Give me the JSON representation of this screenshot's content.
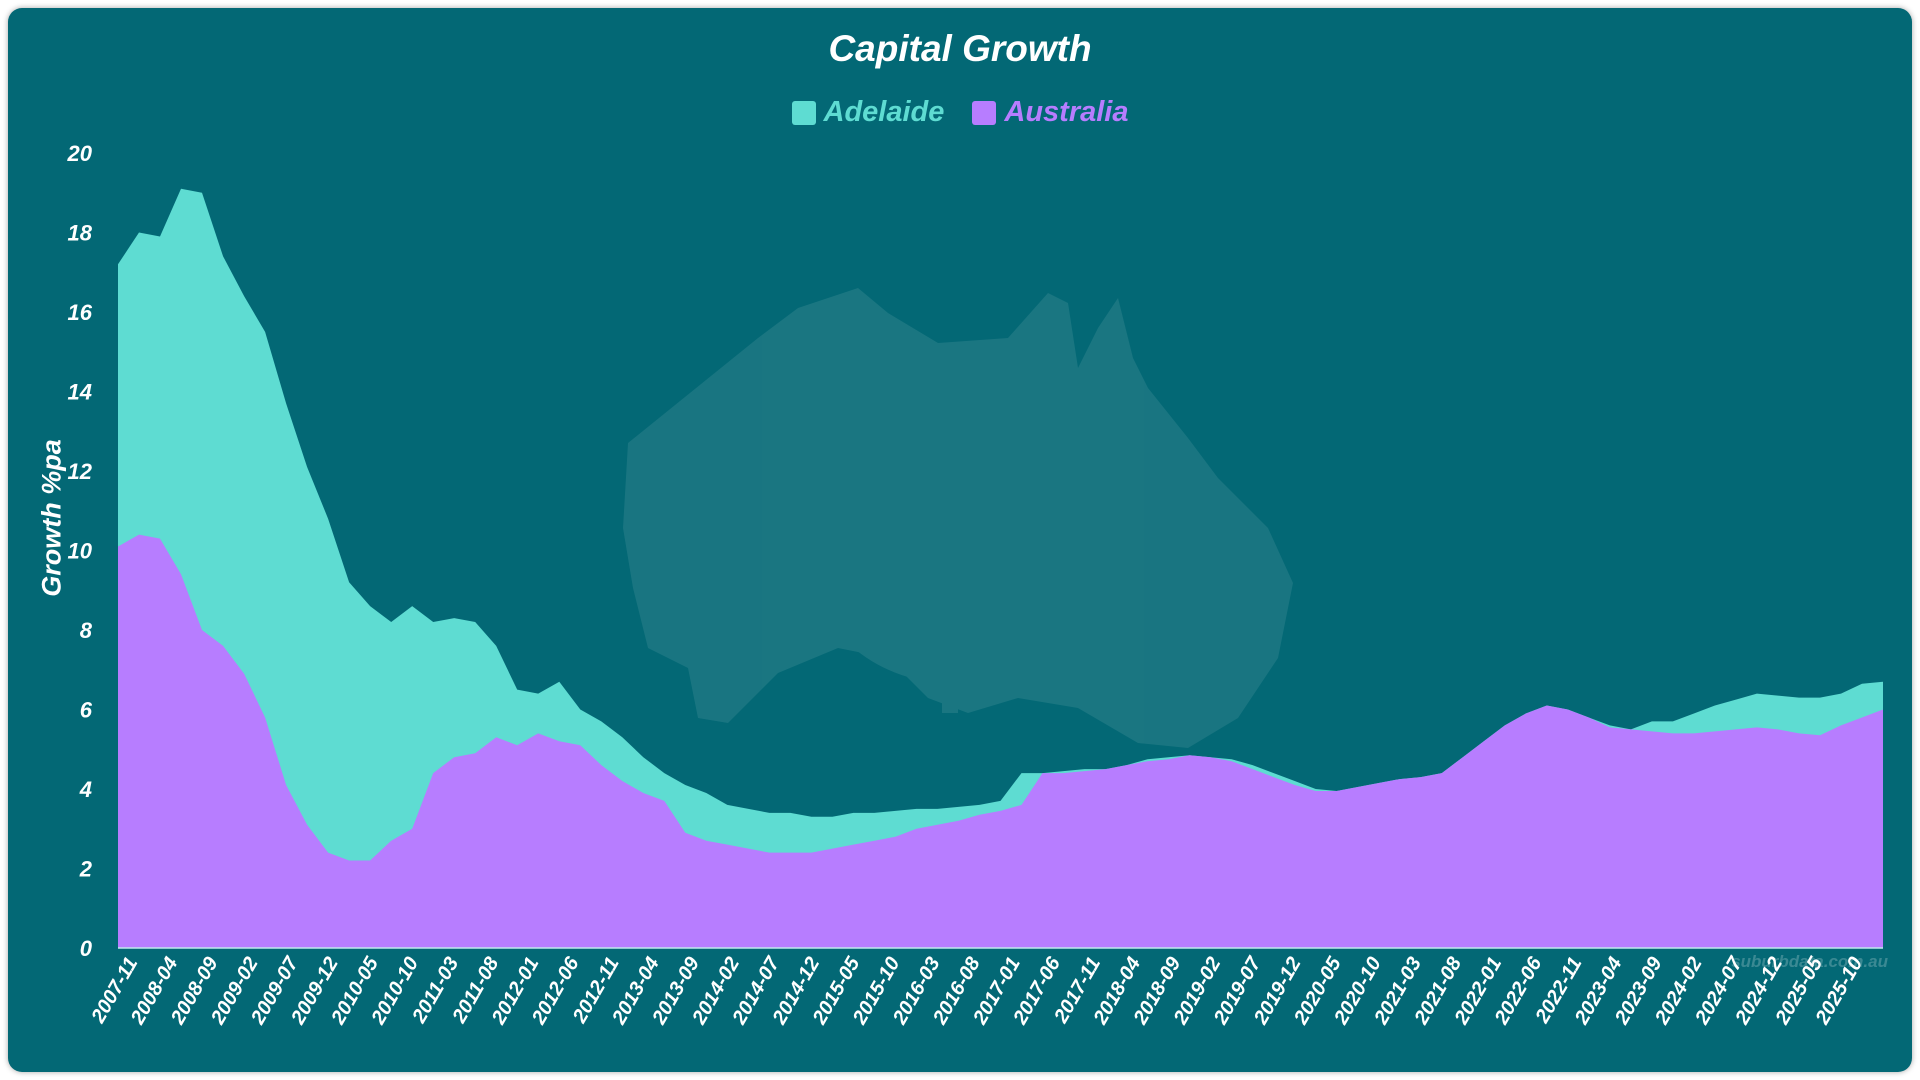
{
  "colors": {
    "background": "#036875",
    "adelaide": "#5EDCD2",
    "australia": "#B77DFF"
  },
  "chart_data": {
    "type": "area",
    "title": "Capital Growth",
    "ylabel": "Growth %pa",
    "ylim": [
      0,
      20
    ],
    "yticks": [
      0,
      2,
      4,
      6,
      8,
      10,
      12,
      14,
      16,
      18,
      20
    ],
    "legend_position": "top-center",
    "grid": false,
    "xticks": [
      "2007-11",
      "2008-04",
      "2008-09",
      "2009-02",
      "2009-07",
      "2009-12",
      "2010-05",
      "2010-10",
      "2011-03",
      "2011-08",
      "2012-01",
      "2012-06",
      "2012-11",
      "2013-04",
      "2013-09",
      "2014-02",
      "2014-07",
      "2014-12",
      "2015-05",
      "2015-10",
      "2016-03",
      "2016-08",
      "2017-01",
      "2017-06",
      "2017-11",
      "2018-04",
      "2018-09",
      "2019-02",
      "2019-07",
      "2019-12",
      "2020-05",
      "2020-10",
      "2021-03",
      "2021-08",
      "2022-01",
      "2022-06",
      "2022-11",
      "2023-04",
      "2023-09",
      "2024-02",
      "2024-07",
      "2024-12",
      "2025-05",
      "2025-10"
    ],
    "series": [
      {
        "name": "Adelaide",
        "color": "#5EDCD2",
        "values": [
          17.2,
          18.0,
          17.9,
          19.1,
          19.0,
          17.4,
          16.4,
          15.5,
          13.7,
          12.1,
          10.8,
          9.2,
          8.6,
          8.2,
          8.6,
          8.2,
          8.3,
          8.2,
          7.6,
          6.5,
          6.4,
          6.7,
          6.0,
          5.7,
          5.3,
          4.8,
          4.4,
          4.1,
          3.9,
          3.6,
          3.5,
          3.4,
          3.4,
          3.3,
          3.3,
          3.4,
          3.4,
          3.45,
          3.5,
          3.5,
          3.55,
          3.6,
          3.7,
          4.4,
          4.4,
          4.45,
          4.5,
          4.5,
          4.6,
          4.75,
          4.8,
          4.85,
          4.8,
          4.75,
          4.6,
          4.4,
          4.2,
          4.0,
          3.95,
          4.05,
          4.15,
          4.25,
          4.3,
          4.4,
          4.8,
          5.2,
          5.6,
          5.9,
          6.1,
          6.0,
          5.8,
          5.6,
          5.5,
          5.7,
          5.7,
          5.9,
          6.1,
          6.25,
          6.4,
          6.35,
          6.3,
          6.3,
          6.4,
          6.65,
          6.7
        ]
      },
      {
        "name": "Australia",
        "color": "#B77DFF",
        "values": [
          10.1,
          10.4,
          10.3,
          9.4,
          8.0,
          7.6,
          6.9,
          5.8,
          4.1,
          3.1,
          2.4,
          2.2,
          2.2,
          2.7,
          3.0,
          4.4,
          4.8,
          4.9,
          5.3,
          5.1,
          5.4,
          5.2,
          5.1,
          4.6,
          4.2,
          3.9,
          3.7,
          2.9,
          2.7,
          2.6,
          2.5,
          2.4,
          2.4,
          2.4,
          2.5,
          2.6,
          2.7,
          2.8,
          3.0,
          3.1,
          3.2,
          3.35,
          3.45,
          3.6,
          4.4,
          4.4,
          4.45,
          4.5,
          4.6,
          4.7,
          4.75,
          4.85,
          4.8,
          4.7,
          4.5,
          4.3,
          4.1,
          3.95,
          3.95,
          4.05,
          4.15,
          4.25,
          4.3,
          4.4,
          4.8,
          5.2,
          5.6,
          5.9,
          6.1,
          6.0,
          5.8,
          5.55,
          5.5,
          5.45,
          5.4,
          5.4,
          5.45,
          5.5,
          5.55,
          5.5,
          5.4,
          5.35,
          5.6,
          5.8,
          6.0
        ]
      }
    ]
  },
  "watermark": {
    "icon": "australia-map-target-icon",
    "source": "suburbdata.com.au"
  }
}
